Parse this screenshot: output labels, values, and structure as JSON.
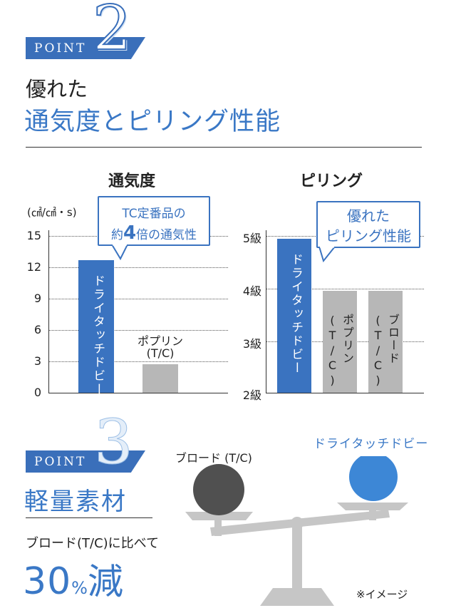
{
  "point2": {
    "label": "POINT",
    "number": "2",
    "title_small": "優れた",
    "title_large": "通気度とピリング性能"
  },
  "breathability_chart": {
    "title": "通気度",
    "unit": "(㎠/㎠・s)",
    "callout_line1": "TC定番品の",
    "callout_prefix": "約",
    "callout_big": "4",
    "callout_suffix": "倍の通気性",
    "chart_data": {
      "type": "bar",
      "categories": [
        "ドライタッチドビー",
        "ポプリン(T/C)"
      ],
      "values": [
        12.7,
        2.7
      ],
      "yticks": [
        "0",
        "3",
        "6",
        "9",
        "12",
        "15"
      ],
      "ylim": [
        0,
        15
      ],
      "colors": [
        "#3a73c0",
        "#b7b7b7"
      ]
    },
    "bar1_label": "ドライタッチドビー",
    "bar2_label_line1": "ポプリン",
    "bar2_label_line2": "(T/C)"
  },
  "pilling_chart": {
    "title": "ピリング",
    "callout_line1": "優れた",
    "callout_line2": "ピリング性能",
    "chart_data": {
      "type": "bar",
      "categories": [
        "ドライタッチドビー",
        "ポプリン(T/C)",
        "ブロード(T/C)"
      ],
      "values": [
        4.95,
        3.95,
        3.95
      ],
      "yticks": [
        "2級",
        "3級",
        "4級",
        "5級"
      ],
      "ylim": [
        2,
        5
      ],
      "colors": [
        "#3a73c0",
        "#b7b7b7",
        "#b7b7b7"
      ]
    },
    "bar1_label": "ドライタッチドビー",
    "bar2_label_a": "ポプリン",
    "bar2_label_b": "(T/C)",
    "bar3_label_a": "ブロード",
    "bar3_label_b": "(T/C)"
  },
  "point3": {
    "label": "POINT",
    "number": "3",
    "title": "軽量素材",
    "compare_text": "ブロード(T/C)に比べて",
    "percent_num": "30",
    "percent_sign": "%",
    "percent_word": "減"
  },
  "scale": {
    "left_label": "ブロード (T/C)",
    "right_label": "ドライタッチドビー",
    "note": "※イメージ",
    "left_color": "#505050",
    "right_color": "#3d87d6"
  }
}
